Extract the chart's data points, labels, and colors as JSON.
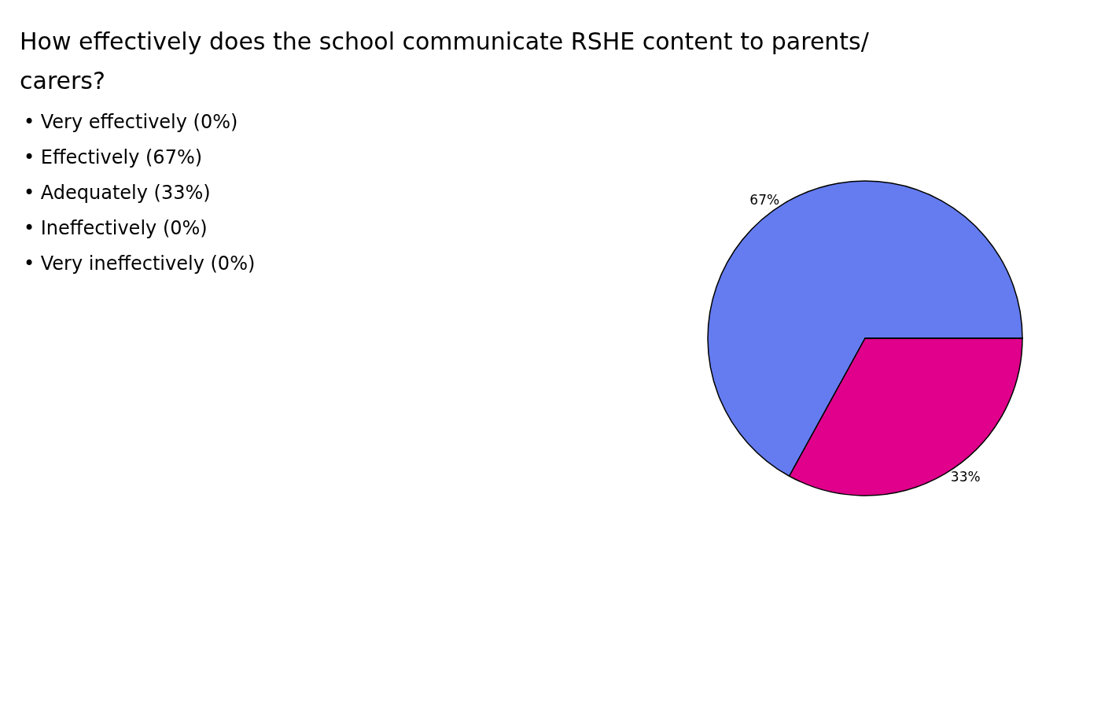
{
  "chart_data": {
    "type": "pie",
    "title": "How effectively does the school communicate RSHE content to parents/carers?",
    "categories": [
      null,
      null,
      null,
      null,
      null
    ],
    "values": [
      0,
      67,
      33,
      0,
      0
    ],
    "colors": [
      "#ffcc00",
      "#647cf0",
      "#e0008c",
      "#33b56f",
      "#ff7a00"
    ],
    "value_labels": [
      null,
      "67%",
      "33%",
      null,
      null
    ],
    "annotations": [
      "• Very effectively (0%)",
      "• Effectively (67%)",
      "• Adequately (33%)",
      "• Ineffectively (0%)",
      "• Very ineffectively (0%)"
    ]
  }
}
